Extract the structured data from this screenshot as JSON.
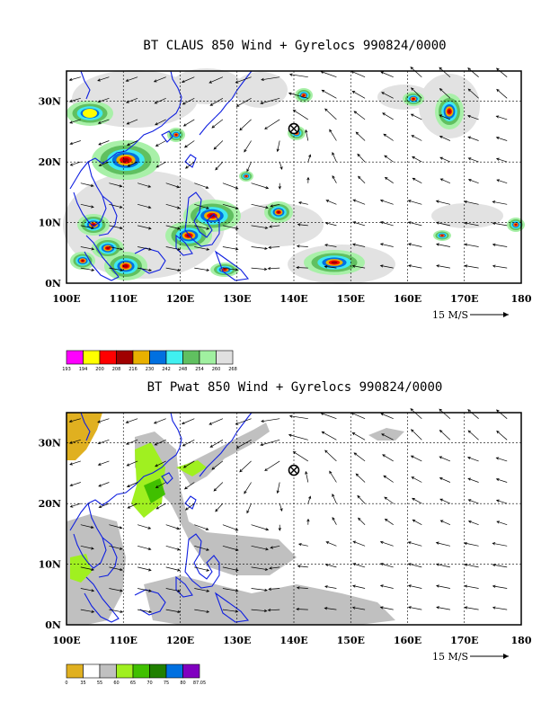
{
  "panels": [
    {
      "title": "BT CLAUS 850 Wind + Gyrelocs 990824/0000",
      "field": "claus",
      "colorbar_labels": [
        "193",
        "194",
        "200",
        "208",
        "216",
        "230",
        "242",
        "248",
        "254",
        "260",
        "268"
      ],
      "colorbar_colors": [
        "#ff00ff",
        "#ffff00",
        "#ff0000",
        "#a00000",
        "#e8b000",
        "#0070e0",
        "#40f0f0",
        "#60c060",
        "#a0f0a0",
        "#e0e0e0"
      ]
    },
    {
      "title": "BT Pwat 850 Wind + Gyrelocs 990824/0000",
      "field": "pwat",
      "colorbar_labels": [
        "0",
        "35",
        "55",
        "60",
        "65",
        "70",
        "75",
        "80",
        "87.05"
      ],
      "colorbar_colors": [
        "#e0b020",
        "#ffffff",
        "#c0c0c0",
        "#a0f020",
        "#40c000",
        "#208000",
        "#0070e0",
        "#8000c0"
      ]
    }
  ],
  "x_ticks": [
    "100E",
    "110E",
    "120E",
    "130E",
    "140E",
    "150E",
    "160E",
    "170E",
    "180"
  ],
  "y_ticks": [
    "0N",
    "10N",
    "20N",
    "30N"
  ],
  "reference_vector": "15 M/S",
  "gyre_marker": {
    "lon": 140,
    "lat": 25.5
  }
}
